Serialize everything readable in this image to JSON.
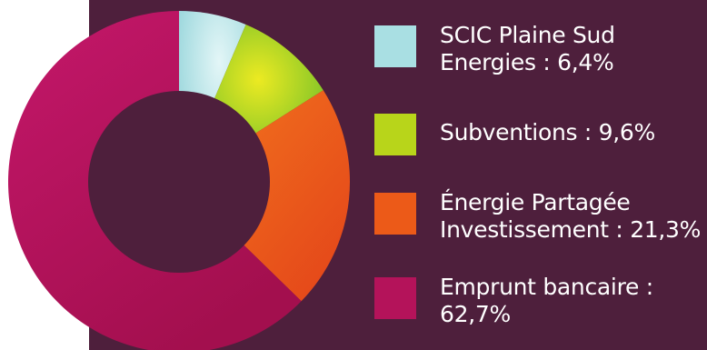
{
  "chart_data": {
    "type": "pie",
    "title": "",
    "slices": [
      {
        "label_lines": [
          "SCIC Plaine Sud",
          "Energies : 6,4%"
        ],
        "value": 6.4,
        "color": "#a9dfe3"
      },
      {
        "label_lines": [
          "Subventions : 9,6%"
        ],
        "value": 9.6,
        "color": "#b8d51a"
      },
      {
        "label_lines": [
          "Énergie Partagée",
          "Investissement : 21,3%"
        ],
        "value": 21.3,
        "color": "#ec5a18"
      },
      {
        "label_lines": [
          "Emprunt bancaire :",
          "62,7%"
        ],
        "value": 62.7,
        "color": "#b4135a"
      }
    ],
    "legend_position": "right"
  },
  "colors": {
    "panel_background": "#4e1f3c",
    "page_background": "#ffffff",
    "text": "#ffffff"
  }
}
